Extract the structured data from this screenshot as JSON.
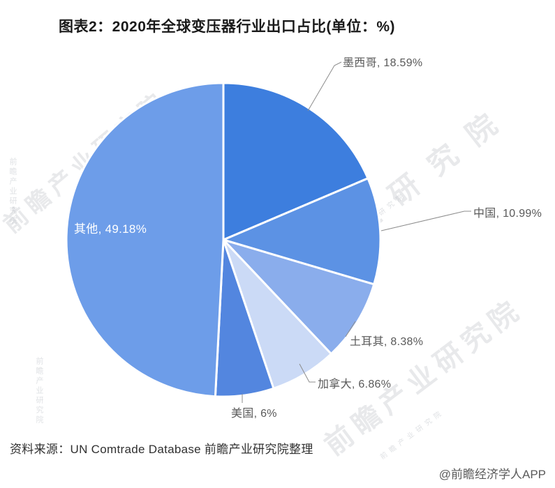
{
  "title": "图表2：2020年全球变压器行业出口占比(单位：%)",
  "chart_data": {
    "type": "pie",
    "title": "2020年全球变压器行业出口占比",
    "unit": "%",
    "start_angle_deg": 0,
    "direction": "clockwise",
    "label_format": "{name}, {value}%",
    "series": [
      {
        "name": "墨西哥",
        "value": 18.59,
        "color": "#3d7ede"
      },
      {
        "name": "中国",
        "value": 10.99,
        "color": "#5c92e4"
      },
      {
        "name": "土耳其",
        "value": 8.38,
        "color": "#8aadec"
      },
      {
        "name": "加拿大",
        "value": 6.86,
        "color": "#cbdaf6"
      },
      {
        "name": "美国",
        "value": 6,
        "color": "#5386df"
      },
      {
        "name": "其他",
        "value": 49.18,
        "color": "#6d9de9"
      }
    ],
    "leader_line_color": "#8c8c8c",
    "slice_border_color": "#ffffff"
  },
  "footer": {
    "source": "资料来源：UN Comtrade Database 前瞻产业研究院整理",
    "credit": "@前瞻经济学人APP"
  },
  "watermark": {
    "text": "前瞻产业研究院",
    "color": "#949ba3"
  }
}
